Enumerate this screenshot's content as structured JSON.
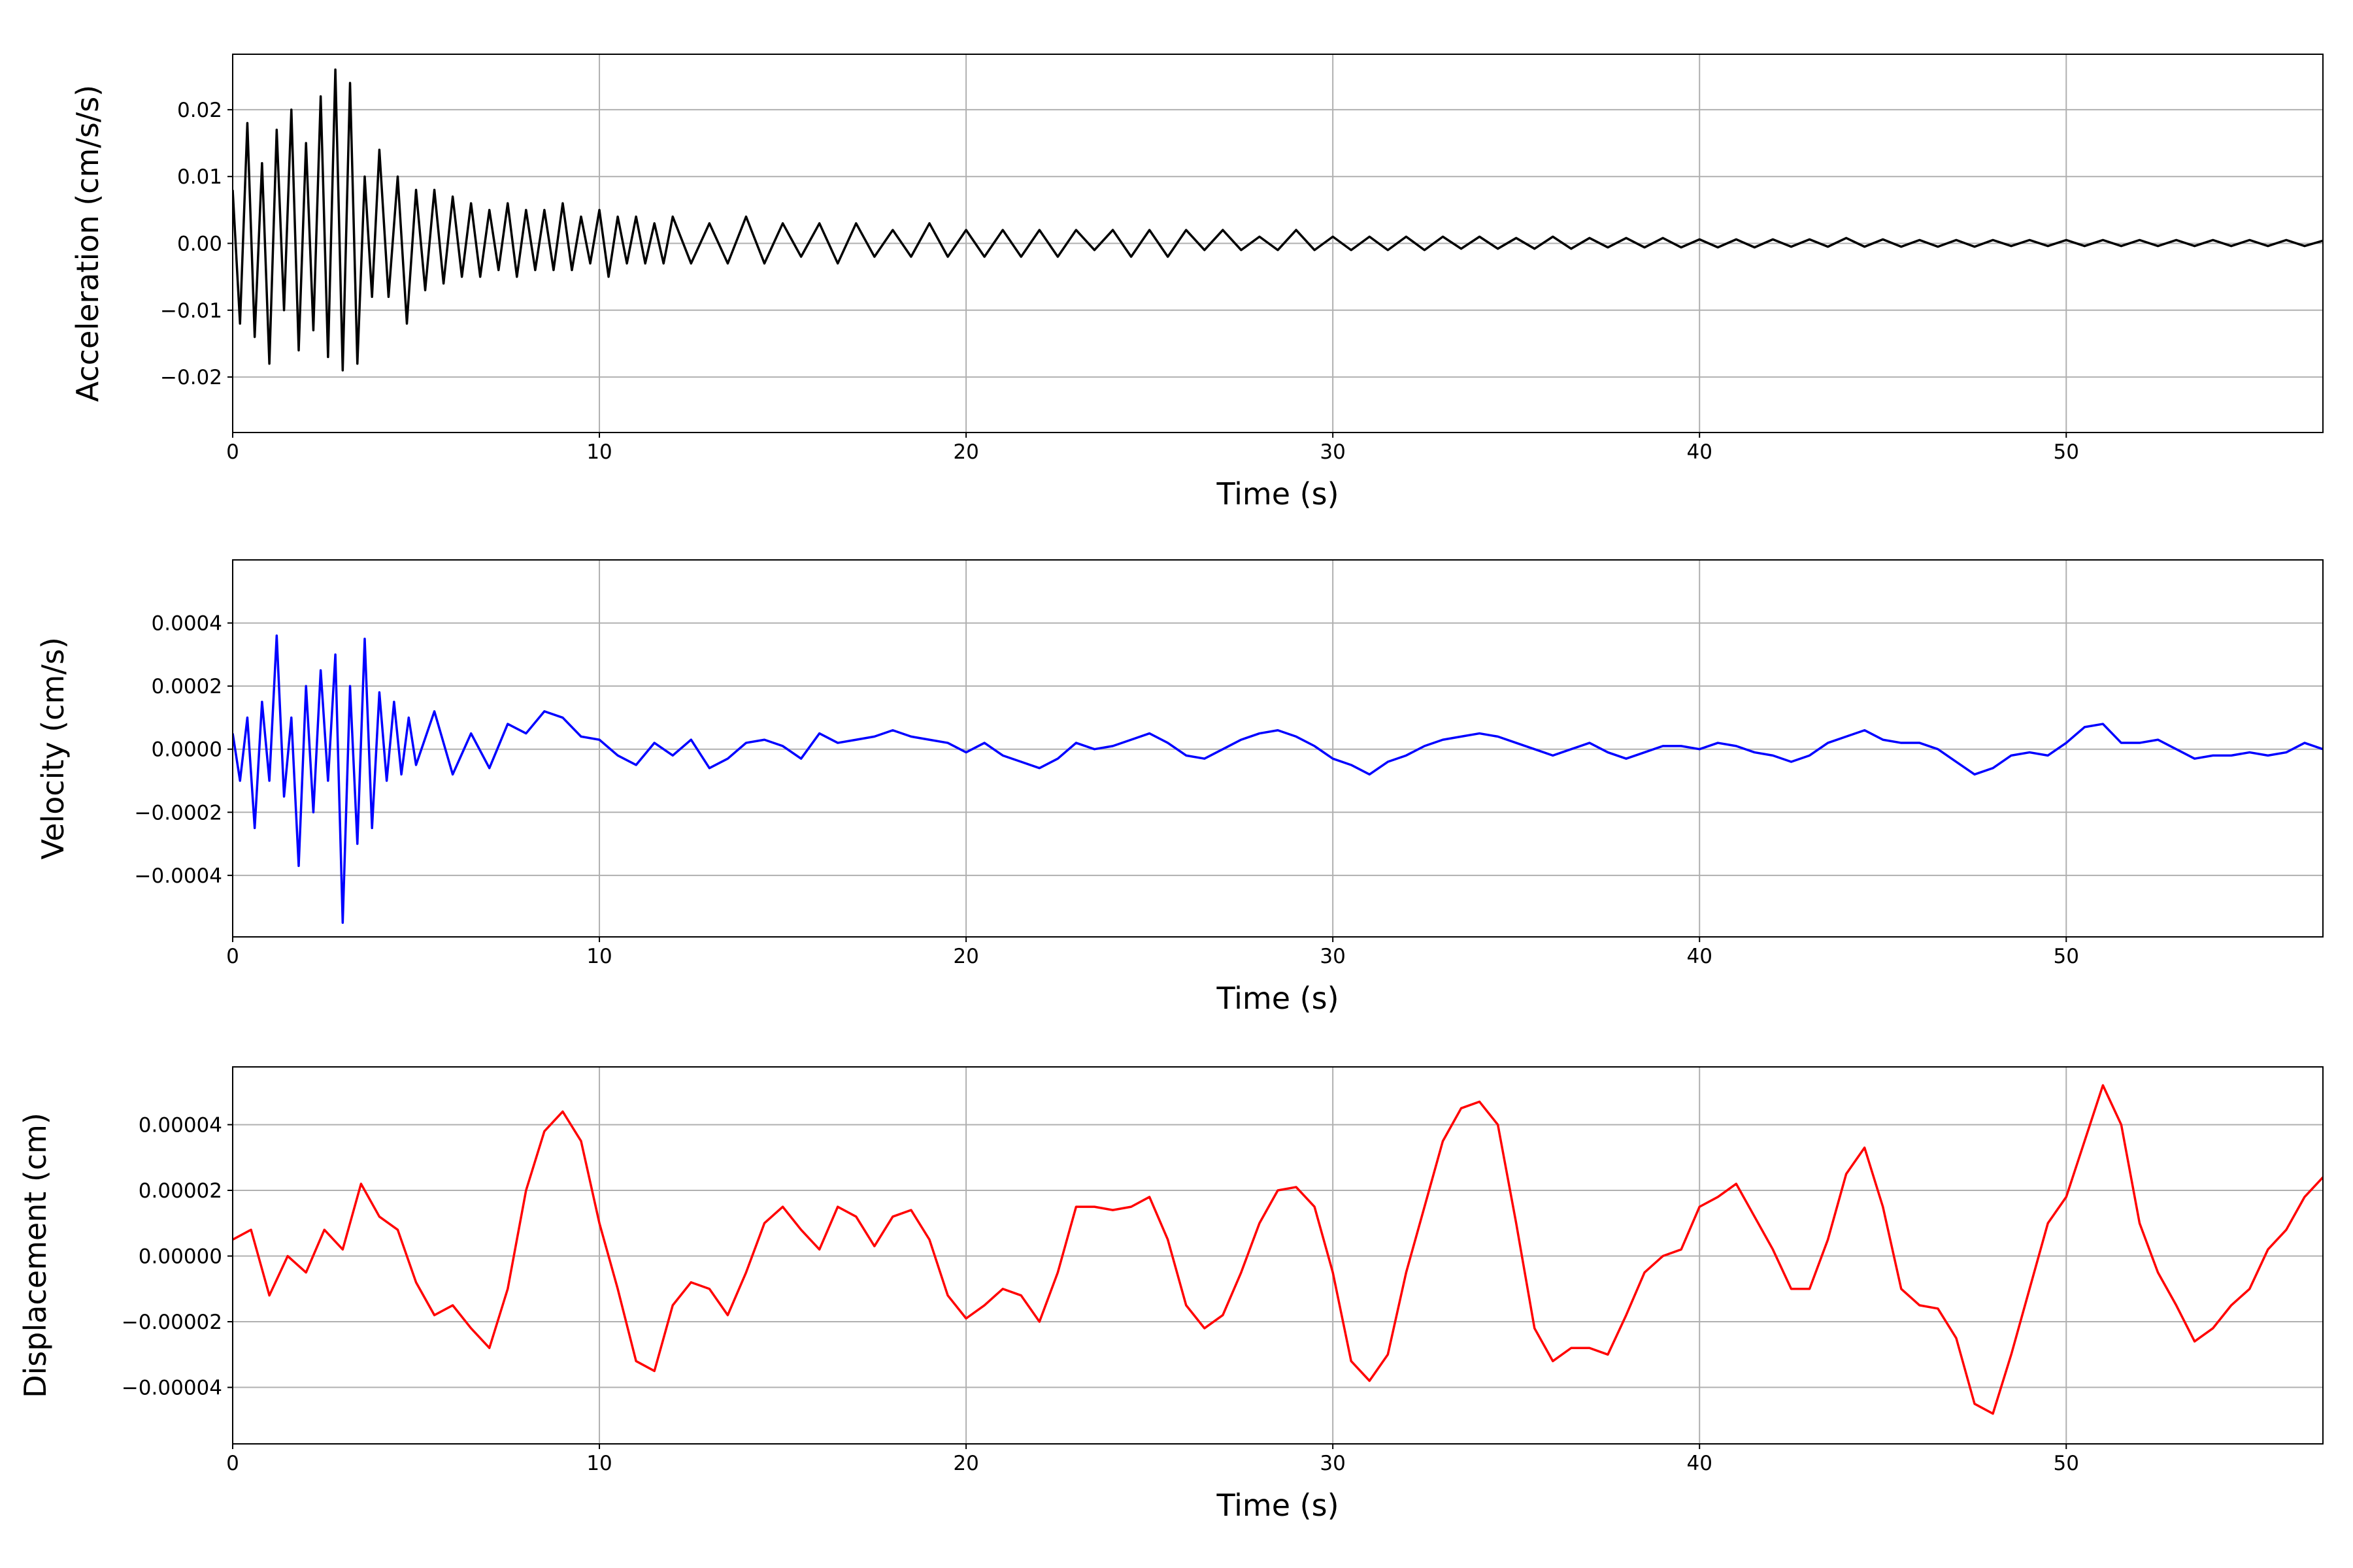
{
  "chart_data": [
    {
      "type": "line",
      "x_label": "Time (s)",
      "y_label": "Acceleration (cm/s/s)",
      "color": "#000000",
      "grid": true,
      "xlim": [
        0,
        57
      ],
      "ylim": [
        -0.0283,
        0.0283
      ],
      "xticks": [
        0,
        10,
        20,
        30,
        40,
        50
      ],
      "yticks": [
        {
          "value": -0.02,
          "label": "−0.02"
        },
        {
          "value": -0.01,
          "label": "−0.01"
        },
        {
          "value": 0,
          "label": "0.00"
        },
        0.01,
        0.02
      ],
      "x": [
        0,
        0.2,
        0.4,
        0.6,
        0.8,
        1,
        1.2,
        1.4,
        1.6,
        1.8,
        2,
        2.2,
        2.4,
        2.6,
        2.8,
        3,
        3.2,
        3.4,
        3.6,
        3.8,
        4,
        4.25,
        4.5,
        4.75,
        5,
        5.25,
        5.5,
        5.75,
        6,
        6.25,
        6.5,
        6.75,
        7,
        7.25,
        7.5,
        7.75,
        8,
        8.25,
        8.5,
        8.75,
        9,
        9.25,
        9.5,
        9.75,
        10,
        10.25,
        10.5,
        10.75,
        11,
        11.25,
        11.5,
        11.75,
        12,
        12.5,
        13,
        13.5,
        14,
        14.5,
        15,
        15.5,
        16,
        16.5,
        17,
        17.5,
        18,
        18.5,
        19,
        19.5,
        20,
        20.5,
        21,
        21.5,
        22,
        22.5,
        23,
        23.5,
        24,
        24.5,
        25,
        25.5,
        26,
        26.5,
        27,
        27.5,
        28,
        28.5,
        29,
        29.5,
        30,
        30.5,
        31,
        31.5,
        32,
        32.5,
        33,
        33.5,
        34,
        34.5,
        35,
        35.5,
        36,
        36.5,
        37,
        37.5,
        38,
        38.5,
        39,
        39.5,
        40,
        40.5,
        41,
        41.5,
        42,
        42.5,
        43,
        43.5,
        44,
        44.5,
        45,
        45.5,
        46,
        46.5,
        47,
        47.5,
        48,
        48.5,
        49,
        49.5,
        50,
        50.5,
        51,
        51.5,
        52,
        52.5,
        53,
        53.5,
        54,
        54.5,
        55,
        55.5,
        56,
        56.5,
        57
      ],
      "values": [
        0.008,
        -0.012,
        0.018,
        -0.014,
        0.012,
        -0.018,
        0.017,
        -0.01,
        0.02,
        -0.016,
        0.015,
        -0.013,
        0.022,
        -0.017,
        0.026,
        -0.019,
        0.024,
        -0.018,
        0.01,
        -0.008,
        0.014,
        -0.008,
        0.01,
        -0.012,
        0.008,
        -0.007,
        0.008,
        -0.006,
        0.007,
        -0.005,
        0.006,
        -0.005,
        0.005,
        -0.004,
        0.006,
        -0.005,
        0.005,
        -0.004,
        0.005,
        -0.004,
        0.006,
        -0.004,
        0.004,
        -0.003,
        0.005,
        -0.005,
        0.004,
        -0.003,
        0.004,
        -0.003,
        0.003,
        -0.003,
        0.004,
        -0.003,
        0.003,
        -0.003,
        0.004,
        -0.003,
        0.003,
        -0.002,
        0.003,
        -0.003,
        0.003,
        -0.002,
        0.002,
        -0.002,
        0.003,
        -0.002,
        0.002,
        -0.002,
        0.002,
        -0.002,
        0.002,
        -0.002,
        0.002,
        -0.001,
        0.002,
        -0.002,
        0.002,
        -0.002,
        0.002,
        -0.001,
        0.002,
        -0.001,
        0.001,
        -0.001,
        0.002,
        -0.001,
        0.001,
        -0.001,
        0.001,
        -0.001,
        0.001,
        -0.001,
        0.001,
        -0.0008,
        0.001,
        -0.0008,
        0.0008,
        -0.0008,
        0.001,
        -0.0008,
        0.0008,
        -0.0006,
        0.0008,
        -0.0006,
        0.0008,
        -0.0006,
        0.0006,
        -0.0006,
        0.0006,
        -0.0006,
        0.0006,
        -0.0005,
        0.0006,
        -0.0005,
        0.0008,
        -0.0005,
        0.0006,
        -0.0005,
        0.0005,
        -0.0005,
        0.0005,
        -0.0005,
        0.0005,
        -0.0004,
        0.0005,
        -0.0004,
        0.0005,
        -0.0004,
        0.0005,
        -0.0004,
        0.0005,
        -0.0004,
        0.0005,
        -0.0004,
        0.0005,
        -0.0004,
        0.0005,
        -0.0004,
        0.0005,
        -0.0004,
        0.0004
      ]
    },
    {
      "type": "line",
      "x_label": "Time (s)",
      "y_label": "Velocity (cm/s)",
      "color": "#0000ff",
      "grid": true,
      "xlim": [
        0,
        57
      ],
      "ylim": [
        -0.000595,
        0.0006
      ],
      "xticks": [
        0,
        10,
        20,
        30,
        40,
        50
      ],
      "yticks": [
        {
          "value": -0.0004,
          "label": "−0.0004"
        },
        {
          "value": -0.0002,
          "label": "−0.0002"
        },
        {
          "value": 0,
          "label": "0.0000"
        },
        0.0002,
        0.0004
      ],
      "x": [
        0,
        0.2,
        0.4,
        0.6,
        0.8,
        1,
        1.2,
        1.4,
        1.6,
        1.8,
        2,
        2.2,
        2.4,
        2.6,
        2.8,
        3,
        3.2,
        3.4,
        3.6,
        3.8,
        4,
        4.2,
        4.4,
        4.6,
        4.8,
        5,
        5.5,
        6,
        6.5,
        7,
        7.5,
        8,
        8.5,
        9,
        9.5,
        10,
        10.5,
        11,
        11.5,
        12,
        12.5,
        13,
        13.5,
        14,
        14.5,
        15,
        15.5,
        16,
        16.5,
        17,
        17.5,
        18,
        18.5,
        19,
        19.5,
        20,
        20.5,
        21,
        21.5,
        22,
        22.5,
        23,
        23.5,
        24,
        24.5,
        25,
        25.5,
        26,
        26.5,
        27,
        27.5,
        28,
        28.5,
        29,
        29.5,
        30,
        30.5,
        31,
        31.5,
        32,
        32.5,
        33,
        33.5,
        34,
        34.5,
        35,
        35.5,
        36,
        36.5,
        37,
        37.5,
        38,
        38.5,
        39,
        39.5,
        40,
        40.5,
        41,
        41.5,
        42,
        42.5,
        43,
        43.5,
        44,
        44.5,
        45,
        45.5,
        46,
        46.5,
        47,
        47.5,
        48,
        48.5,
        49,
        49.5,
        50,
        50.5,
        51,
        51.5,
        52,
        52.5,
        53,
        53.5,
        54,
        54.5,
        55,
        55.5,
        56,
        56.5,
        57
      ],
      "values": [
        5e-05,
        -0.0001,
        0.0001,
        -0.00025,
        0.00015,
        -0.0001,
        0.00036,
        -0.00015,
        0.0001,
        -0.00037,
        0.0002,
        -0.0002,
        0.00025,
        -0.0001,
        0.0003,
        -0.00055,
        0.0002,
        -0.0003,
        0.00035,
        -0.00025,
        0.00018,
        -0.0001,
        0.00015,
        -8e-05,
        0.0001,
        -5e-05,
        0.00012,
        -8e-05,
        5e-05,
        -6e-05,
        8e-05,
        5e-05,
        0.00012,
        0.0001,
        4e-05,
        3e-05,
        -2e-05,
        -5e-05,
        2e-05,
        -2e-05,
        3e-05,
        -6e-05,
        -3e-05,
        2e-05,
        3e-05,
        1e-05,
        -3e-05,
        5e-05,
        2e-05,
        3e-05,
        4e-05,
        6e-05,
        4e-05,
        3e-05,
        2e-05,
        -1e-05,
        2e-05,
        -2e-05,
        -4e-05,
        -6e-05,
        -3e-05,
        2e-05,
        0,
        1e-05,
        3e-05,
        5e-05,
        2e-05,
        -2e-05,
        -3e-05,
        0,
        3e-05,
        5e-05,
        6e-05,
        4e-05,
        1e-05,
        -3e-05,
        -5e-05,
        -8e-05,
        -4e-05,
        -2e-05,
        1e-05,
        3e-05,
        4e-05,
        5e-05,
        4e-05,
        2e-05,
        0,
        -2e-05,
        0,
        2e-05,
        -1e-05,
        -3e-05,
        -1e-05,
        1e-05,
        1e-05,
        0,
        2e-05,
        1e-05,
        -1e-05,
        -2e-05,
        -4e-05,
        -2e-05,
        2e-05,
        4e-05,
        6e-05,
        3e-05,
        2e-05,
        2e-05,
        0,
        -4e-05,
        -8e-05,
        -6e-05,
        -2e-05,
        -1e-05,
        -2e-05,
        2e-05,
        7e-05,
        8e-05,
        2e-05,
        2e-05,
        3e-05,
        0,
        -3e-05,
        -2e-05,
        -2e-05,
        -1e-05,
        -2e-05,
        -1e-05,
        2e-05,
        0
      ]
    },
    {
      "type": "line",
      "x_label": "Time (s)",
      "y_label": "Displacement (cm)",
      "color": "#ff0000",
      "grid": true,
      "xlim": [
        0,
        57
      ],
      "ylim": [
        -5.72e-05,
        5.76e-05
      ],
      "xticks": [
        0,
        10,
        20,
        30,
        40,
        50
      ],
      "yticks": [
        {
          "value": -4e-05,
          "label": "−0.00004"
        },
        {
          "value": -2e-05,
          "label": "−0.00002"
        },
        {
          "value": 0,
          "label": "0.00000"
        },
        2e-05,
        4e-05
      ],
      "x": [
        0,
        0.5,
        1,
        1.5,
        2,
        2.5,
        3,
        3.5,
        4,
        4.5,
        5,
        5.5,
        6,
        6.5,
        7,
        7.5,
        8,
        8.5,
        9,
        9.5,
        10,
        10.5,
        11,
        11.5,
        12,
        12.5,
        13,
        13.5,
        14,
        14.5,
        15,
        15.5,
        16,
        16.5,
        17,
        17.5,
        18,
        18.5,
        19,
        19.5,
        20,
        20.5,
        21,
        21.5,
        22,
        22.5,
        23,
        23.5,
        24,
        24.5,
        25,
        25.5,
        26,
        26.5,
        27,
        27.5,
        28,
        28.5,
        29,
        29.5,
        30,
        30.5,
        31,
        31.5,
        32,
        32.5,
        33,
        33.5,
        34,
        34.5,
        35,
        35.5,
        36,
        36.5,
        37,
        37.5,
        38,
        38.5,
        39,
        39.5,
        40,
        40.5,
        41,
        41.5,
        42,
        42.5,
        43,
        43.5,
        44,
        44.5,
        45,
        45.5,
        46,
        46.5,
        47,
        47.5,
        48,
        48.5,
        49,
        49.5,
        50,
        50.5,
        51,
        51.5,
        52,
        52.5,
        53,
        53.5,
        54,
        54.5,
        55,
        55.5,
        56,
        56.5,
        57
      ],
      "values": [
        5e-06,
        8e-06,
        -1.2e-05,
        0,
        -5e-06,
        8e-06,
        2e-06,
        2.2e-05,
        1.2e-05,
        8e-06,
        -8e-06,
        -1.8e-05,
        -1.5e-05,
        -2.2e-05,
        -2.8e-05,
        -1e-05,
        2e-05,
        3.8e-05,
        4.4e-05,
        3.5e-05,
        1e-05,
        -1e-05,
        -3.2e-05,
        -3.5e-05,
        -1.5e-05,
        -8e-06,
        -1e-05,
        -1.8e-05,
        -5e-06,
        1e-05,
        1.5e-05,
        8e-06,
        2e-06,
        1.5e-05,
        1.2e-05,
        3e-06,
        1.2e-05,
        1.4e-05,
        5e-06,
        -1.2e-05,
        -1.9e-05,
        -1.5e-05,
        -1e-05,
        -1.2e-05,
        -2e-05,
        -5e-06,
        1.5e-05,
        1.5e-05,
        1.4e-05,
        1.5e-05,
        1.8e-05,
        5e-06,
        -1.5e-05,
        -2.2e-05,
        -1.8e-05,
        -5e-06,
        1e-05,
        2e-05,
        2.1e-05,
        1.5e-05,
        -5e-06,
        -3.2e-05,
        -3.8e-05,
        -3e-05,
        -5e-06,
        1.5e-05,
        3.5e-05,
        4.5e-05,
        4.7e-05,
        4e-05,
        1e-05,
        -2.2e-05,
        -3.2e-05,
        -2.8e-05,
        -2.8e-05,
        -3e-05,
        -1.8e-05,
        -5e-06,
        0,
        2e-06,
        1.5e-05,
        1.8e-05,
        2.2e-05,
        1.2e-05,
        2e-06,
        -1e-05,
        -1e-05,
        5e-06,
        2.5e-05,
        3.3e-05,
        1.5e-05,
        -1e-05,
        -1.5e-05,
        -1.6e-05,
        -2.5e-05,
        -4.5e-05,
        -4.8e-05,
        -3e-05,
        -1e-05,
        1e-05,
        1.8e-05,
        3.5e-05,
        5.2e-05,
        4e-05,
        1e-05,
        -5e-06,
        -1.5e-05,
        -2.6e-05,
        -2.2e-05,
        -1.5e-05,
        -1e-05,
        2e-06,
        8e-06,
        1.8e-05,
        2.4e-05
      ]
    }
  ]
}
